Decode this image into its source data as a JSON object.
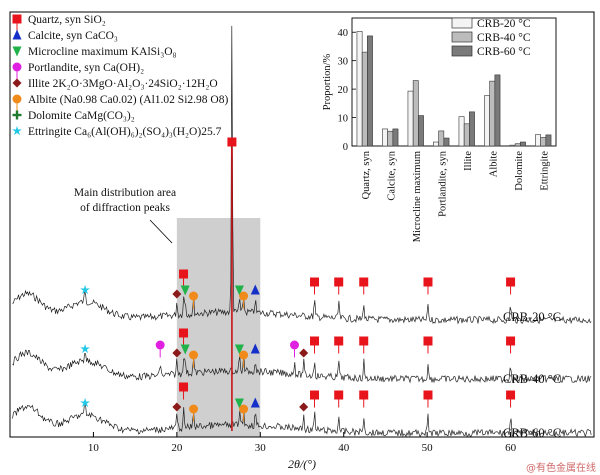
{
  "legend": [
    {
      "label": "Quartz, syn SiO₂",
      "marker": "square",
      "color": "#e8141c"
    },
    {
      "label": "Calcite, syn CaCO₃",
      "marker": "triangle",
      "color": "#1530c8"
    },
    {
      "label": "Microcline maximum KAlSi₃O₈",
      "marker": "triangle-down",
      "color": "#22b24a"
    },
    {
      "label": "Portlandite, syn Ca(OH)₂",
      "marker": "circle",
      "color": "#e020e0"
    },
    {
      "label": "Illite 2K₂O·3MgO·Al₂O₃·24SiO₂·12H₂O",
      "marker": "diamond",
      "color": "#8b1a1a"
    },
    {
      "label": "Albite (Na0.98 Ca0.02) (Al1.02 Si2.98 O8)",
      "marker": "circle",
      "color": "#f08a1a"
    },
    {
      "label": "Dolomite CaMg(CO₃)₂",
      "marker": "plus",
      "color": "#1e7a2e"
    },
    {
      "label": "Ettringite Ca₆(Al(OH)₆)₂(SO₄)₃(H₂O)25.7",
      "marker": "star",
      "color": "#22c8e8"
    }
  ],
  "annotation": "Main distribution area of diffraction peaks",
  "curve_labels": [
    "CRB-20 °C",
    "CRB-40 °C",
    "CRB-60 °C"
  ],
  "watermark": "@有色金属在线",
  "chart_data": [
    {
      "type": "line",
      "xlabel": "2θ/(°)",
      "ylabel": "",
      "xlim": [
        0,
        70
      ],
      "xticks": [
        10,
        20,
        30,
        40,
        50,
        60
      ],
      "highlight_band": [
        20,
        30
      ],
      "series": [
        {
          "name": "CRB-20 °C",
          "peaks": [
            {
              "x": 9.0,
              "phase": "Ettringite"
            },
            {
              "x": 20.0,
              "phase": "Illite"
            },
            {
              "x": 20.8,
              "phase": "Quartz"
            },
            {
              "x": 21.0,
              "phase": "Microcline"
            },
            {
              "x": 22.0,
              "phase": "Albite"
            },
            {
              "x": 26.6,
              "phase": "Quartz"
            },
            {
              "x": 27.5,
              "phase": "Microcline"
            },
            {
              "x": 28.0,
              "phase": "Albite"
            },
            {
              "x": 29.4,
              "phase": "Calcite"
            },
            {
              "x": 36.5,
              "phase": "Quartz"
            },
            {
              "x": 39.4,
              "phase": "Quartz"
            },
            {
              "x": 42.4,
              "phase": "Quartz"
            },
            {
              "x": 50.1,
              "phase": "Quartz"
            },
            {
              "x": 60.0,
              "phase": "Quartz"
            }
          ]
        },
        {
          "name": "CRB-40 °C",
          "peaks": [
            {
              "x": 9.0,
              "phase": "Ettringite"
            },
            {
              "x": 18.0,
              "phase": "Portlandite"
            },
            {
              "x": 20.0,
              "phase": "Illite"
            },
            {
              "x": 20.8,
              "phase": "Quartz"
            },
            {
              "x": 21.0,
              "phase": "Microcline"
            },
            {
              "x": 22.0,
              "phase": "Albite"
            },
            {
              "x": 26.6,
              "phase": "Quartz"
            },
            {
              "x": 27.5,
              "phase": "Microcline"
            },
            {
              "x": 28.0,
              "phase": "Albite"
            },
            {
              "x": 29.4,
              "phase": "Calcite"
            },
            {
              "x": 34.1,
              "phase": "Portlandite"
            },
            {
              "x": 35.2,
              "phase": "Illite"
            },
            {
              "x": 36.5,
              "phase": "Quartz"
            },
            {
              "x": 39.4,
              "phase": "Quartz"
            },
            {
              "x": 42.4,
              "phase": "Quartz"
            },
            {
              "x": 50.1,
              "phase": "Quartz"
            },
            {
              "x": 60.0,
              "phase": "Quartz"
            }
          ]
        },
        {
          "name": "CRB-60 °C",
          "peaks": [
            {
              "x": 9.0,
              "phase": "Ettringite"
            },
            {
              "x": 20.0,
              "phase": "Illite"
            },
            {
              "x": 20.8,
              "phase": "Quartz"
            },
            {
              "x": 22.0,
              "phase": "Albite"
            },
            {
              "x": 26.6,
              "phase": "Quartz"
            },
            {
              "x": 27.5,
              "phase": "Microcline"
            },
            {
              "x": 28.0,
              "phase": "Albite"
            },
            {
              "x": 29.4,
              "phase": "Calcite"
            },
            {
              "x": 35.2,
              "phase": "Illite"
            },
            {
              "x": 36.5,
              "phase": "Quartz"
            },
            {
              "x": 39.4,
              "phase": "Quartz"
            },
            {
              "x": 42.4,
              "phase": "Quartz"
            },
            {
              "x": 50.1,
              "phase": "Quartz"
            },
            {
              "x": 60.0,
              "phase": "Quartz"
            }
          ]
        }
      ]
    },
    {
      "type": "bar",
      "ylabel": "Proportion/%",
      "ylim": [
        0,
        45
      ],
      "yticks": [
        0,
        10,
        20,
        30,
        40
      ],
      "categories": [
        "Quartz, syn",
        "Calcite, syn",
        "Microcline maximum",
        "Portlandite, syn",
        "Illite",
        "Albite",
        "Dolomite",
        "Ettringite"
      ],
      "series": [
        {
          "name": "CRB-20 °C",
          "color": "#f4f4f4",
          "values": [
            40.3,
            6.0,
            19.3,
            1.4,
            10.3,
            17.7,
            0.3,
            4.0
          ]
        },
        {
          "name": "CRB-40 °C",
          "color": "#bcbcbc",
          "values": [
            33.0,
            5.2,
            23.0,
            5.3,
            7.8,
            22.8,
            0.8,
            3.0
          ]
        },
        {
          "name": "CRB-60 °C",
          "color": "#7a7a7a",
          "values": [
            38.7,
            6.0,
            10.7,
            2.8,
            12.0,
            25.0,
            1.4,
            3.9
          ]
        }
      ],
      "legend_position": "top-right"
    }
  ]
}
